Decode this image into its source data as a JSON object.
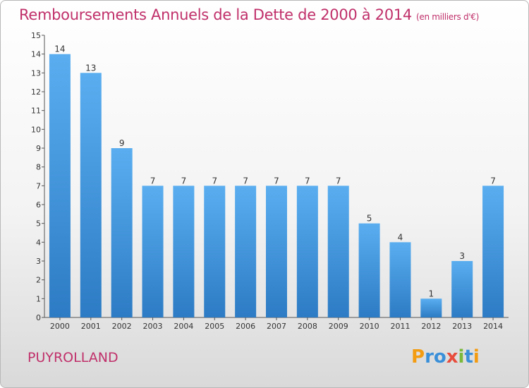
{
  "header": {
    "title": "Remboursements Annuels de la Dette de 2000 à 2014",
    "unit": "(en milliers d'€)"
  },
  "footer": {
    "place": "PUYROLLAND",
    "logo_letters": [
      {
        "ch": "P",
        "color": "#f39c12"
      },
      {
        "ch": "r",
        "color": "#3a8fd9"
      },
      {
        "ch": "o",
        "color": "#3a8fd9"
      },
      {
        "ch": "x",
        "color": "#e74c3c"
      },
      {
        "ch": "i",
        "color": "#7ab93b"
      },
      {
        "ch": "t",
        "color": "#3a8fd9"
      },
      {
        "ch": "i",
        "color": "#f39c12"
      }
    ]
  },
  "colors": {
    "title": "#c0306a",
    "bar_light": "#5aaef0",
    "bar_dark": "#2c7bc4"
  },
  "chart_data": {
    "type": "bar",
    "title": "Remboursements Annuels de la Dette de 2000 à 2014",
    "categories": [
      "2000",
      "2001",
      "2002",
      "2003",
      "2004",
      "2005",
      "2006",
      "2007",
      "2008",
      "2009",
      "2010",
      "2011",
      "2012",
      "2013",
      "2014"
    ],
    "values": [
      14,
      13,
      9,
      7,
      7,
      7,
      7,
      7,
      7,
      7,
      5,
      4,
      1,
      3,
      7
    ],
    "ylim": [
      0,
      15
    ],
    "yticks": [
      0,
      1,
      2,
      3,
      4,
      5,
      6,
      7,
      8,
      9,
      10,
      11,
      12,
      13,
      14,
      15
    ],
    "grid": false,
    "data_labels": true
  }
}
